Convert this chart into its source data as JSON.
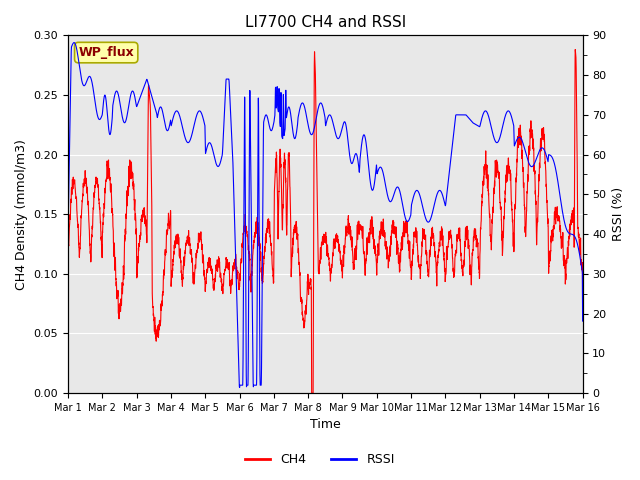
{
  "title": "LI7700 CH4 and RSSI",
  "xlabel": "Time",
  "ylabel_left": "CH4 Density (mmol/m3)",
  "ylabel_right": "RSSI (%)",
  "ch4_color": "#FF0000",
  "rssi_color": "#0000FF",
  "ylim_left": [
    0.0,
    0.3
  ],
  "ylim_right": [
    0,
    90
  ],
  "yticks_left": [
    0.0,
    0.05,
    0.1,
    0.15,
    0.2,
    0.25,
    0.3
  ],
  "yticks_right": [
    0,
    10,
    20,
    30,
    40,
    50,
    60,
    70,
    80,
    90
  ],
  "xtick_labels": [
    "Mar 1",
    "Mar 2",
    "Mar 3",
    "Mar 4",
    "Mar 5",
    "Mar 6",
    "Mar 7",
    "Mar 8",
    "Mar 9",
    "Mar 10",
    "Mar 11",
    "Mar 12",
    "Mar 13",
    "Mar 14",
    "Mar 15",
    "Mar 16"
  ],
  "station_label": "WP_flux",
  "bg_color": "#E8E8E8",
  "line_width": 0.8,
  "title_fontsize": 11,
  "label_fontsize": 9,
  "tick_fontsize": 8,
  "legend_fontsize": 9
}
